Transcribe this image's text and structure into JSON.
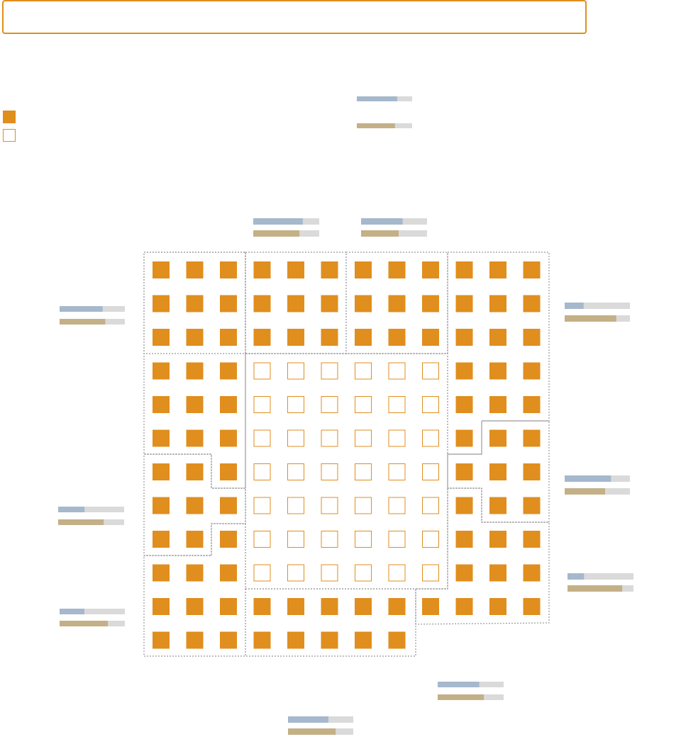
{
  "search": {
    "value": "",
    "placeholder": ""
  },
  "colors": {
    "accent": "#e08e1e",
    "bar_blue": "#a5b8cc",
    "bar_tan": "#c4b087",
    "bar_track": "#dadada",
    "region_border": "#999999"
  },
  "legend": [
    {
      "kind": "filled"
    },
    {
      "kind": "empty"
    }
  ],
  "grid": {
    "cols": 12,
    "rows": 12,
    "empty_cells": {
      "col_from": 3,
      "col_to": 8,
      "row_from": 3,
      "row_to": 9
    },
    "missing_cells": {
      "col_from": 8,
      "col_to": 11,
      "row_from": 11,
      "row_to": 11
    }
  },
  "bar_groups": [
    {
      "id": "legend-key",
      "blue": 0.73,
      "tan": 0.69
    },
    {
      "id": "top-left-region",
      "blue": 0.75,
      "tan": 0.7
    },
    {
      "id": "top-right-region",
      "blue": 0.63,
      "tan": 0.57
    },
    {
      "id": "left-upper-region",
      "blue": 0.66,
      "tan": 0.7
    },
    {
      "id": "right-upper-region",
      "blue": 0.29,
      "tan": 0.79
    },
    {
      "id": "right-middle-region",
      "blue": 0.71,
      "tan": 0.62
    },
    {
      "id": "left-middle-region",
      "blue": 0.4,
      "tan": 0.69
    },
    {
      "id": "right-lower-region",
      "blue": 0.25,
      "tan": 0.83
    },
    {
      "id": "left-lower-region",
      "blue": 0.38,
      "tan": 0.74
    },
    {
      "id": "bottom-right-region",
      "blue": 0.63,
      "tan": 0.7
    },
    {
      "id": "bottom-region",
      "blue": 0.62,
      "tan": 0.73
    }
  ]
}
